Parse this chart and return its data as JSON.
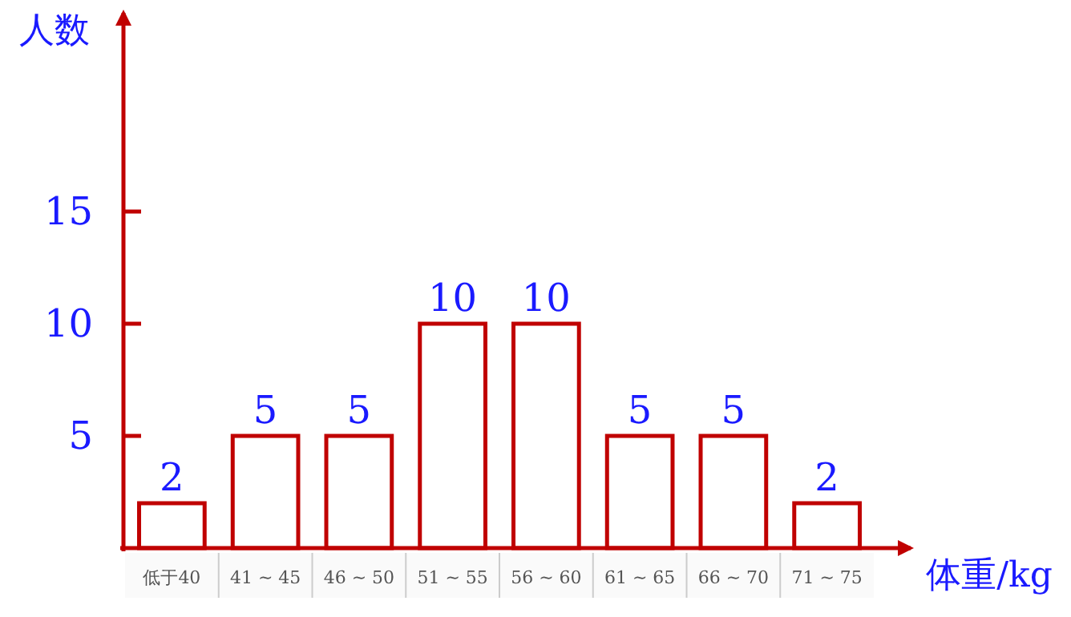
{
  "chart_data": {
    "type": "bar",
    "xlabel": "体重/kg",
    "ylabel": "人数",
    "categories": [
      "低于40",
      "41 ~ 45",
      "46 ~ 50",
      "51 ~ 55",
      "56 ~ 60",
      "61 ~ 65",
      "66 ~ 70",
      "71 ~ 75"
    ],
    "values": [
      2,
      5,
      5,
      10,
      10,
      5,
      5,
      2
    ],
    "color": "#c00000",
    "ylim": [
      0,
      24
    ],
    "yticks": [
      5,
      10,
      15
    ],
    "data_labels": true,
    "grid": false
  }
}
